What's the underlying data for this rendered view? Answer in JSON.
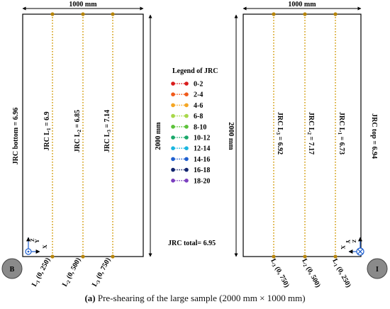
{
  "top_dim_left": "1000 mm",
  "top_dim_right": "1000 mm",
  "height_dim_left": "2000 mm",
  "height_dim_right": "2000 mm",
  "left_panel": {
    "side_label": "JRC bottom = 6.96",
    "lines": [
      {
        "jrc_label": "JRC L",
        "sub": "1",
        "value": " = 6.9",
        "coord_main": "L",
        "coord_sub": "1",
        "coord_text": " (0, 250)"
      },
      {
        "jrc_label": "JRC L",
        "sub": "2",
        "value": " = 6.85",
        "coord_main": "L",
        "coord_sub": "2",
        "coord_text": " (0, 500)"
      },
      {
        "jrc_label": "JRC L",
        "sub": "3",
        "value": " = 7.14",
        "coord_main": "L",
        "coord_sub": "3",
        "coord_text": " (0, 750)"
      }
    ],
    "marker_label": "B",
    "axis_labels": {
      "z": "Z",
      "y": "Y",
      "x": "X"
    }
  },
  "right_panel": {
    "side_label": "JRC top = 6.94",
    "lines": [
      {
        "jrc_label": "JRC L",
        "sub": "3",
        "value": " = 6.92",
        "coord_main": "L",
        "coord_sub": "3",
        "coord_text": " (0, 750)"
      },
      {
        "jrc_label": "JRC L",
        "sub": "2",
        "value": " = 7.17",
        "coord_main": "L",
        "coord_sub": "2",
        "coord_text": " (0, 500)"
      },
      {
        "jrc_label": "JRC L",
        "sub": "1",
        "value": " = 6.73",
        "coord_main": "L",
        "coord_sub": "1",
        "coord_text": " (0, 250)"
      }
    ],
    "marker_label": "I",
    "axis_labels": {
      "z": "Z",
      "y": "Y",
      "x": "X"
    }
  },
  "legend": {
    "title": "Legend of JRC",
    "items": [
      {
        "label": "0-2",
        "color": "#d81b1b"
      },
      {
        "label": "2-4",
        "color": "#f05a1a"
      },
      {
        "label": "4-6",
        "color": "#f5a623"
      },
      {
        "label": "6-8",
        "color": "#a8d84a"
      },
      {
        "label": "8-10",
        "color": "#5cc23a"
      },
      {
        "label": "10-12",
        "color": "#1aa86a"
      },
      {
        "label": "12-14",
        "color": "#1ab6e0"
      },
      {
        "label": "14-16",
        "color": "#1f5fcf"
      },
      {
        "label": "16-18",
        "color": "#12256e"
      },
      {
        "label": "18-20",
        "color": "#7b3fbf"
      }
    ]
  },
  "total_label": "JRC total= 6.95",
  "profile_line_color": "#d4a017",
  "caption": {
    "tag": "(a)",
    "text": " Pre-shearing of the large sample (2000 mm × 1000 mm)"
  }
}
